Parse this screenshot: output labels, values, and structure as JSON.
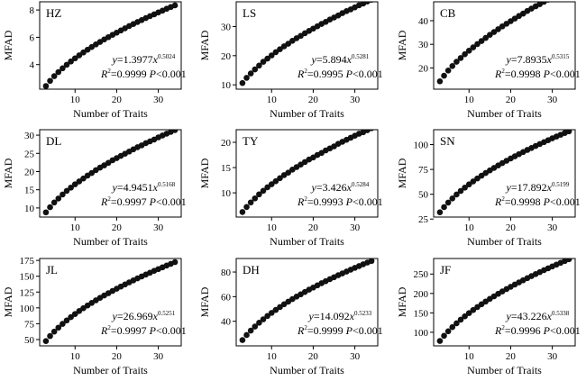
{
  "charts": [
    {
      "title": "HZ",
      "a": 1.3977,
      "b": 0.5024,
      "eq_coef": "1.3977",
      "eq_exp": "0.5024",
      "r2": "0.9999",
      "p": "0.001",
      "yticks": [
        4,
        6,
        8
      ],
      "ylim": [
        2.2,
        8.6
      ]
    },
    {
      "title": "LS",
      "a": 5.894,
      "b": 0.5281,
      "eq_coef": "5.894",
      "eq_exp": "0.5281",
      "r2": "0.9995",
      "p": "0.001",
      "yticks": [
        10,
        20,
        30
      ],
      "ylim": [
        8.5,
        38.5
      ]
    },
    {
      "title": "CB",
      "a": 7.8935,
      "b": 0.5315,
      "eq_coef": "7.8935",
      "eq_exp": "0.5315",
      "r2": "0.9998",
      "p": "0.001",
      "yticks": [
        20,
        30,
        40
      ],
      "ylim": [
        11,
        48
      ]
    },
    {
      "title": "DL",
      "a": 4.9451,
      "b": 0.5168,
      "eq_coef": "4.9451",
      "eq_exp": "0.5168",
      "r2": "0.9997",
      "p": "0.001",
      "yticks": [
        10,
        15,
        20,
        25,
        30
      ],
      "ylim": [
        7.5,
        31.5
      ]
    },
    {
      "title": "TY",
      "a": 3.426,
      "b": 0.5284,
      "eq_coef": "3.426",
      "eq_exp": "0.5284",
      "r2": "0.9993",
      "p": "0.001",
      "yticks": [
        10,
        15,
        20
      ],
      "ylim": [
        5.2,
        22.5
      ]
    },
    {
      "title": "SN",
      "a": 17.892,
      "b": 0.5199,
      "eq_coef": "17.892",
      "eq_exp": "0.5199",
      "r2": "0.9998",
      "p": "0.001",
      "yticks": [
        25,
        50,
        75,
        100
      ],
      "ylim": [
        27,
        115
      ]
    },
    {
      "title": "JL",
      "a": 26.969,
      "b": 0.5251,
      "eq_coef": "26.969",
      "eq_exp": "0.5251",
      "r2": "0.9997",
      "p": "0.001",
      "yticks": [
        50,
        75,
        100,
        125,
        150,
        175
      ],
      "ylim": [
        40,
        178
      ]
    },
    {
      "title": "DH",
      "a": 14.092,
      "b": 0.5233,
      "eq_coef": "14.092",
      "eq_exp": "0.5233",
      "r2": "0.9999",
      "p": "0.001",
      "yticks": [
        40,
        60,
        80
      ],
      "ylim": [
        20,
        91
      ]
    },
    {
      "title": "JF",
      "a": 43.226,
      "b": 0.5338,
      "eq_coef": "43.226",
      "eq_exp": "0.5338",
      "r2": "0.9996",
      "p": "0.001",
      "yticks": [
        100,
        150,
        200,
        250
      ],
      "ylim": [
        65,
        290
      ]
    }
  ],
  "xlabel": "Number of Traits",
  "ylabel": "MFAD",
  "xticks": [
    10,
    20,
    30
  ],
  "xlim": [
    1.5,
    35.5
  ],
  "chart_data": [
    {
      "type": "scatter",
      "title": "HZ",
      "x_range": [
        3,
        34
      ],
      "fit": "y=1.3977x^0.5024",
      "x": [
        3,
        4,
        5,
        6,
        7,
        8,
        9,
        10,
        11,
        12,
        13,
        14,
        15,
        16,
        17,
        18,
        19,
        20,
        21,
        22,
        23,
        24,
        25,
        26,
        27,
        28,
        29,
        30,
        31,
        32,
        33,
        34
      ],
      "y": [
        2.43,
        2.81,
        3.15,
        3.45,
        3.73,
        3.99,
        4.23,
        4.46,
        4.68,
        4.89,
        5.09,
        5.29,
        5.48,
        5.66,
        5.84,
        6.01,
        6.18,
        6.34,
        6.5,
        6.66,
        6.82,
        6.97,
        7.12,
        7.26,
        7.41,
        7.55,
        7.68,
        7.82,
        7.95,
        8.09,
        8.22,
        8.34
      ],
      "xlabel": "Number of Traits",
      "ylabel": "MFAD",
      "yticks": [
        4,
        6,
        8
      ],
      "xticks": [
        10,
        20,
        30
      ]
    },
    {
      "type": "scatter",
      "title": "LS",
      "x_range": [
        3,
        34
      ],
      "fit": "y=5.894x^0.5281",
      "x": [
        3,
        4,
        5,
        6,
        7,
        8,
        9,
        10,
        11,
        12,
        13,
        14,
        15,
        16,
        17,
        18,
        19,
        20,
        21,
        22,
        23,
        24,
        25,
        26,
        27,
        28,
        29,
        30,
        31,
        32,
        33,
        34
      ],
      "y": [
        10.6,
        12.4,
        13.9,
        15.3,
        16.6,
        17.9,
        19.0,
        20.1,
        21.2,
        22.2,
        23.2,
        24.1,
        25.1,
        26.0,
        26.8,
        27.7,
        28.5,
        29.3,
        30.1,
        30.9,
        31.6,
        32.4,
        33.1,
        33.8,
        34.6,
        35.3,
        35.9,
        36.6,
        37.3,
        37.9,
        38.6,
        39.2
      ],
      "xlabel": "Number of Traits",
      "ylabel": "MFAD",
      "yticks": [
        10,
        20,
        30
      ],
      "xticks": [
        10,
        20,
        30
      ]
    },
    {
      "type": "scatter",
      "title": "CB",
      "x_range": [
        3,
        34
      ],
      "fit": "y=7.8935x^0.5315",
      "x": [
        3,
        4,
        5,
        6,
        7,
        8,
        9,
        10,
        11,
        12,
        13,
        14,
        15,
        16,
        17,
        18,
        19,
        20,
        21,
        22,
        23,
        24,
        25,
        26,
        27,
        28,
        29,
        30,
        31,
        32,
        33,
        34
      ],
      "y": [
        14.3,
        16.7,
        18.9,
        20.8,
        22.6,
        24.2,
        25.8,
        27.3,
        28.7,
        30.1,
        31.4,
        32.7,
        34.0,
        35.2,
        36.4,
        37.6,
        38.7,
        39.8,
        40.9,
        42.0,
        43.0,
        44.1,
        45.1,
        46.1,
        47.0,
        48.0,
        48.9,
        49.9,
        50.8,
        51.7,
        52.6,
        53.4
      ],
      "xlabel": "Number of Traits",
      "ylabel": "MFAD",
      "yticks": [
        20,
        30,
        40
      ],
      "xticks": [
        10,
        20,
        30
      ]
    },
    {
      "type": "scatter",
      "title": "DL",
      "x_range": [
        3,
        34
      ],
      "fit": "y=4.9451x^0.5168",
      "x": [
        3,
        4,
        5,
        6,
        7,
        8,
        9,
        10,
        11,
        12,
        13,
        14,
        15,
        16,
        17,
        18,
        19,
        20,
        21,
        22,
        23,
        24,
        25,
        26,
        27,
        28,
        29,
        30,
        31,
        32,
        33,
        34
      ],
      "y": [
        8.8,
        10.2,
        11.5,
        12.6,
        13.7,
        14.7,
        15.6,
        16.5,
        17.3,
        18.1,
        18.9,
        19.6,
        20.4,
        21.1,
        21.7,
        22.4,
        23.1,
        23.7,
        24.3,
        24.9,
        25.5,
        26.1,
        26.7,
        27.2,
        27.8,
        28.3,
        28.8,
        29.4,
        29.9,
        30.4,
        30.9,
        31.4
      ],
      "xlabel": "Number of Traits",
      "ylabel": "MFAD",
      "yticks": [
        10,
        15,
        20,
        25,
        30
      ],
      "xticks": [
        10,
        20,
        30
      ]
    },
    {
      "type": "scatter",
      "title": "TY",
      "x_range": [
        3,
        34
      ],
      "fit": "y=3.426x^0.5284",
      "x": [
        3,
        4,
        5,
        6,
        7,
        8,
        9,
        10,
        11,
        12,
        13,
        14,
        15,
        16,
        17,
        18,
        19,
        20,
        21,
        22,
        23,
        24,
        25,
        26,
        27,
        28,
        29,
        30,
        31,
        32,
        33,
        34
      ],
      "y": [
        6.2,
        7.2,
        8.1,
        8.9,
        9.7,
        10.4,
        11.1,
        11.7,
        12.3,
        12.9,
        13.5,
        14.0,
        14.6,
        15.1,
        15.6,
        16.1,
        16.6,
        17.0,
        17.5,
        17.9,
        18.4,
        18.8,
        19.2,
        19.7,
        20.1,
        20.5,
        20.9,
        21.3,
        21.7,
        22.0,
        22.4,
        22.8
      ],
      "xlabel": "Number of Traits",
      "ylabel": "MFAD",
      "yticks": [
        10,
        15,
        20
      ],
      "xticks": [
        10,
        20,
        30
      ]
    },
    {
      "type": "scatter",
      "title": "SN",
      "x_range": [
        3,
        34
      ],
      "fit": "y=17.892x^0.5199",
      "x": [
        3,
        4,
        5,
        6,
        7,
        8,
        9,
        10,
        11,
        12,
        13,
        14,
        15,
        16,
        17,
        18,
        19,
        20,
        21,
        22,
        23,
        24,
        25,
        26,
        27,
        28,
        29,
        30,
        31,
        32,
        33,
        34
      ],
      "y": [
        31.8,
        37.0,
        41.6,
        45.8,
        49.7,
        53.3,
        56.7,
        59.9,
        62.9,
        65.9,
        68.7,
        71.4,
        74.0,
        76.5,
        79.0,
        81.4,
        83.7,
        86.0,
        88.2,
        90.4,
        92.5,
        94.6,
        96.6,
        98.6,
        100.6,
        102.5,
        104.4,
        106.3,
        108.1,
        109.9,
        111.7,
        113.4
      ],
      "xlabel": "Number of Traits",
      "ylabel": "MFAD",
      "yticks": [
        25,
        50,
        75,
        100
      ],
      "xticks": [
        10,
        20,
        30
      ]
    },
    {
      "type": "scatter",
      "title": "JL",
      "x_range": [
        3,
        34
      ],
      "fit": "y=26.969x^0.5251",
      "x": [
        3,
        4,
        5,
        6,
        7,
        8,
        9,
        10,
        11,
        12,
        13,
        14,
        15,
        16,
        17,
        18,
        19,
        20,
        21,
        22,
        23,
        24,
        25,
        26,
        27,
        28,
        29,
        30,
        31,
        32,
        33,
        34
      ],
      "y": [
        47.5,
        55.5,
        62.5,
        68.8,
        74.7,
        80.2,
        85.4,
        90.3,
        95.0,
        99.5,
        103.8,
        107.9,
        111.9,
        115.8,
        119.6,
        123.2,
        126.8,
        130.3,
        133.7,
        137.0,
        140.3,
        143.4,
        146.6,
        149.6,
        152.6,
        155.6,
        158.5,
        161.3,
        164.1,
        166.9,
        169.6,
        172.3
      ],
      "xlabel": "Number of Traits",
      "ylabel": "MFAD",
      "yticks": [
        50,
        75,
        100,
        125,
        150,
        175
      ],
      "xticks": [
        10,
        20,
        30
      ]
    },
    {
      "type": "scatter",
      "title": "DH",
      "x_range": [
        3,
        34
      ],
      "fit": "y=14.092x^0.5233",
      "x": [
        3,
        4,
        5,
        6,
        7,
        8,
        9,
        10,
        11,
        12,
        13,
        14,
        15,
        16,
        17,
        18,
        19,
        20,
        21,
        22,
        23,
        24,
        25,
        26,
        27,
        28,
        29,
        30,
        31,
        32,
        33,
        34
      ],
      "y": [
        24.7,
        28.8,
        32.4,
        35.7,
        38.8,
        41.6,
        44.3,
        46.8,
        49.2,
        51.5,
        53.8,
        55.9,
        58.0,
        60.0,
        61.9,
        63.8,
        65.7,
        67.4,
        69.2,
        70.9,
        72.6,
        74.2,
        75.8,
        77.4,
        78.9,
        80.4,
        81.9,
        83.4,
        84.8,
        86.3,
        87.7,
        89.0
      ],
      "xlabel": "Number of Traits",
      "ylabel": "MFAD",
      "yticks": [
        40,
        60,
        80
      ],
      "xticks": [
        10,
        20,
        30
      ]
    },
    {
      "type": "scatter",
      "title": "JF",
      "x_range": [
        3,
        34
      ],
      "fit": "y=43.226x^0.5338",
      "x": [
        3,
        4,
        5,
        6,
        7,
        8,
        9,
        10,
        11,
        12,
        13,
        14,
        15,
        16,
        17,
        18,
        19,
        20,
        21,
        22,
        23,
        24,
        25,
        26,
        27,
        28,
        29,
        30,
        31,
        32,
        33,
        34
      ],
      "y": [
        77.6,
        90.9,
        102.6,
        113.2,
        123.1,
        132.4,
        141.1,
        149.4,
        157.3,
        164.9,
        172.2,
        179.2,
        186.0,
        192.6,
        199.0,
        205.2,
        211.2,
        217.1,
        222.9,
        228.5,
        234.0,
        239.4,
        244.7,
        249.8,
        254.9,
        259.9,
        264.8,
        269.6,
        274.3,
        279.0,
        283.6,
        288.1
      ],
      "xlabel": "Number of Traits",
      "ylabel": "MFAD",
      "yticks": [
        100,
        150,
        200,
        250
      ],
      "xticks": [
        10,
        20,
        30
      ]
    }
  ]
}
